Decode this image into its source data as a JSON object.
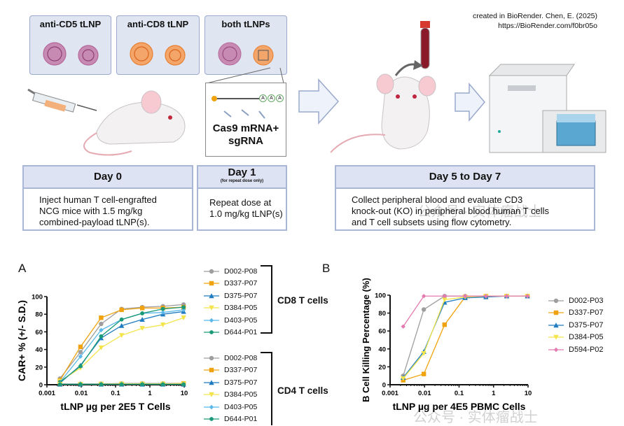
{
  "credit": {
    "line1": "created in BioRender. Chen, E. (2025)",
    "line2": "https://BioRender.com/f0br05o"
  },
  "lnp_boxes": [
    {
      "label": "anti-CD5 tLNP",
      "color": "#b5669a"
    },
    {
      "label": "anti-CD8 tLNP",
      "color": "#f19a55"
    },
    {
      "label": "both tLNPs",
      "color": "#b5669a"
    }
  ],
  "payload": {
    "label_line1": "Cas9 mRNA+",
    "label_line2": "sgRNA",
    "tail_letters": [
      "A",
      "A",
      "A"
    ]
  },
  "timeline": [
    {
      "title": "Day 0",
      "subtitle": "",
      "lines": [
        "Inject human T cell-engrafted",
        "NCG mice with 1.5 mg/kg",
        "combined-payload tLNP(s)."
      ]
    },
    {
      "title": "Day 1",
      "subtitle": "(for repeat dose only)",
      "lines": [
        "Repeat dose at",
        "1.0 mg/kg tLNP(s)"
      ]
    },
    {
      "title": "Day 5 to Day 7",
      "subtitle": "",
      "lines": [
        "Collect peripheral blood and evaluate CD3",
        "knock-out (KO) in peripheral blood human T cells",
        "and T cell subsets using flow cytometry."
      ]
    }
  ],
  "watermark": "公众号 · 实体瘤战士",
  "chart_data": [
    {
      "panel": "A",
      "type": "line",
      "xscale": "log",
      "xlabel": "tLNP µg per 2E5 T Cells",
      "ylabel": "CAR+ % (+/- S.D.)",
      "xlim": [
        0.001,
        10
      ],
      "ylim": [
        0,
        100
      ],
      "xticks": [
        "0.001",
        "0.01",
        "0.1",
        "1",
        "10"
      ],
      "yticks": [
        "0",
        "20",
        "40",
        "60",
        "80",
        "100"
      ],
      "x": [
        0.0024,
        0.0095,
        0.038,
        0.15,
        0.6,
        2.4,
        9.6
      ],
      "groups": [
        {
          "name": "CD8 T cells",
          "series": [
            {
              "name": "D002-P08",
              "color": "#9e9e9e",
              "marker": "circle",
              "values": [
                7,
                37,
                69,
                86,
                88,
                89,
                91
              ]
            },
            {
              "name": "D337-P07",
              "color": "#f0a30f",
              "marker": "square",
              "values": [
                5,
                43,
                76,
                85,
                87,
                87,
                88
              ]
            },
            {
              "name": "D375-P07",
              "color": "#1f7cc1",
              "marker": "triangle",
              "values": [
                2,
                22,
                53,
                67,
                74,
                80,
                83
              ]
            },
            {
              "name": "D384-P05",
              "color": "#f3e449",
              "marker": "triangle-down",
              "values": [
                4,
                19,
                42,
                56,
                64,
                68,
                76
              ]
            },
            {
              "name": "D403-P05",
              "color": "#5bb8ea",
              "marker": "diamond",
              "values": [
                3,
                32,
                62,
                74,
                81,
                82,
                85
              ]
            },
            {
              "name": "D644-P01",
              "color": "#1a9a78",
              "marker": "hexagon",
              "values": [
                3,
                21,
                55,
                74,
                81,
                86,
                88
              ]
            }
          ]
        },
        {
          "name": "CD4 T cells",
          "series": [
            {
              "name": "D002-P08",
              "color": "#9e9e9e",
              "marker": "circle",
              "values": [
                1,
                1,
                1,
                1.5,
                1.5,
                1.5,
                1.5
              ]
            },
            {
              "name": "D337-P07",
              "color": "#f0a30f",
              "marker": "square",
              "values": [
                0.5,
                0.5,
                0.8,
                1,
                1,
                1,
                1.5
              ]
            },
            {
              "name": "D375-P07",
              "color": "#1f7cc1",
              "marker": "triangle",
              "values": [
                0.5,
                0.5,
                0.5,
                0.5,
                0.5,
                0.5,
                0.5
              ]
            },
            {
              "name": "D384-P05",
              "color": "#f3e449",
              "marker": "triangle-down",
              "values": [
                0.5,
                0.5,
                0.5,
                1,
                1,
                1,
                1
              ]
            },
            {
              "name": "D403-P05",
              "color": "#5bb8ea",
              "marker": "diamond",
              "values": [
                0.5,
                0.5,
                0.5,
                0.5,
                0.5,
                0.5,
                0.5
              ]
            },
            {
              "name": "D644-P01",
              "color": "#1a9a78",
              "marker": "hexagon",
              "values": [
                0.5,
                0.5,
                0.5,
                0.5,
                0.5,
                0.5,
                0.5
              ]
            }
          ]
        }
      ]
    },
    {
      "panel": "B",
      "type": "line",
      "xscale": "log",
      "xlabel": "tLNP µg per 4E5 PBMC Cells",
      "ylabel": "B Cell Killing Percentage (%)",
      "xlim": [
        0.001,
        10
      ],
      "ylim": [
        0,
        100
      ],
      "xticks": [
        "0.001",
        "0.01",
        "0.1",
        "1",
        "10"
      ],
      "yticks": [
        "0",
        "20",
        "40",
        "60",
        "80",
        "100"
      ],
      "x": [
        0.0024,
        0.0095,
        0.038,
        0.15,
        0.6,
        2.4,
        9.6
      ],
      "legend_position": "right",
      "series": [
        {
          "name": "D002-P03",
          "color": "#9e9e9e",
          "marker": "circle",
          "values": [
            10,
            84,
            99,
            99,
            99,
            99,
            99
          ]
        },
        {
          "name": "D337-P07",
          "color": "#f0a30f",
          "marker": "square",
          "values": [
            5,
            12,
            67,
            98,
            99,
            99,
            99
          ]
        },
        {
          "name": "D375-P07",
          "color": "#1f7cc1",
          "marker": "triangle",
          "values": [
            8,
            37,
            92,
            97,
            98,
            99,
            99
          ]
        },
        {
          "name": "D384-P05",
          "color": "#f3e449",
          "marker": "triangle-down",
          "values": [
            7,
            35,
            95,
            98,
            99,
            99,
            99
          ]
        },
        {
          "name": "D594-P02",
          "color": "#e27bb0",
          "marker": "diamond",
          "values": [
            65,
            99,
            99,
            99,
            99,
            99,
            99
          ]
        }
      ]
    }
  ]
}
